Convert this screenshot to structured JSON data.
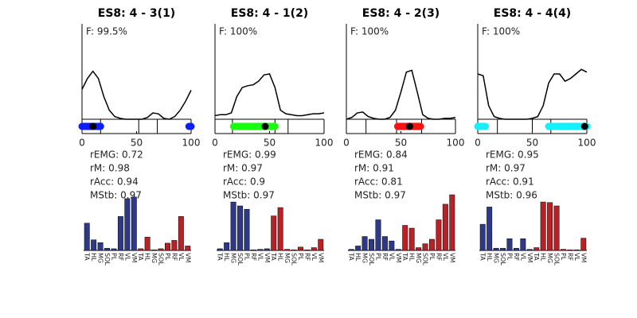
{
  "chart_data": [
    {
      "type": "line",
      "title": "ES8: 4 - 3(1)",
      "annotation": "F: 99.5%",
      "x": [
        0,
        5,
        10,
        15,
        20,
        25,
        30,
        35,
        40,
        45,
        50,
        55,
        60,
        65,
        70,
        75,
        80,
        85,
        90,
        95,
        100
      ],
      "values": [
        0.33,
        0.45,
        0.53,
        0.45,
        0.25,
        0.1,
        0.03,
        0.01,
        0,
        0,
        0,
        0,
        0.02,
        0.07,
        0.06,
        0.01,
        0,
        0.03,
        0.1,
        0.2,
        0.32
      ],
      "xlim": [
        0,
        100
      ],
      "xticks": [
        0,
        50,
        100
      ],
      "ylim": [
        0,
        1
      ],
      "color": "#000000",
      "phase_lines": [
        17,
        52,
        69
      ],
      "highlight_ranges": [
        [
          0,
          17
        ],
        [
          98,
          100
        ]
      ],
      "highlight_color": "#0a1eff",
      "marker": 10,
      "stats": [
        "rEMG: 0.72",
        "rM: 0.98",
        "rAcc: 0.94",
        "MStb: 0.97"
      ]
    },
    {
      "type": "bar",
      "categories": [
        "TA",
        "HL",
        "MG",
        "SOL",
        "PL",
        "RF",
        "VL",
        "VM",
        "TA",
        "HL",
        "MG",
        "SOL",
        "PL",
        "RF",
        "VL",
        "VM"
      ],
      "values": [
        0.49,
        0.19,
        0.14,
        0.04,
        0.03,
        0.61,
        0.93,
        0.96,
        0.03,
        0.24,
        0.01,
        0.03,
        0.13,
        0.18,
        0.61,
        0.08
      ],
      "colors": [
        "#2e3a87",
        "#2e3a87",
        "#2e3a87",
        "#2e3a87",
        "#2e3a87",
        "#2e3a87",
        "#2e3a87",
        "#2e3a87",
        "#b82125",
        "#b82125",
        "#b82125",
        "#b82125",
        "#b82125",
        "#b82125",
        "#b82125",
        "#b82125"
      ],
      "ylim": [
        0,
        1
      ]
    },
    {
      "type": "line",
      "title": "ES8: 4 - 1(2)",
      "annotation": "F: 100%",
      "x": [
        0,
        5,
        10,
        15,
        20,
        25,
        30,
        35,
        40,
        45,
        50,
        55,
        60,
        65,
        70,
        75,
        80,
        85,
        90,
        95,
        100
      ],
      "values": [
        0.04,
        0.05,
        0.05,
        0.07,
        0.25,
        0.35,
        0.37,
        0.38,
        0.42,
        0.49,
        0.5,
        0.35,
        0.1,
        0.06,
        0.05,
        0.04,
        0.04,
        0.05,
        0.06,
        0.06,
        0.07
      ],
      "xlim": [
        0,
        100
      ],
      "xticks": [
        0,
        50,
        100
      ],
      "ylim": [
        0,
        1
      ],
      "color": "#000000",
      "phase_lines": [
        16,
        55,
        67
      ],
      "highlight_ranges": [
        [
          17,
          55
        ]
      ],
      "highlight_color": "#19ff10",
      "marker": 46,
      "stats": [
        "rEMG: 0.99",
        "rM: 0.97",
        "rAcc: 0.9",
        "MStb: 0.97"
      ]
    },
    {
      "type": "bar",
      "categories": [
        "TA",
        "HL",
        "MG",
        "SOL",
        "PL",
        "RF",
        "VL",
        "VM",
        "TA",
        "HL",
        "MG",
        "SOL",
        "PL",
        "RF",
        "VL",
        "VM"
      ],
      "values": [
        0.03,
        0.14,
        0.87,
        0.8,
        0.74,
        0.01,
        0.02,
        0.03,
        0.62,
        0.77,
        0.02,
        0.01,
        0.06,
        0.01,
        0.05,
        0.2
      ],
      "colors": [
        "#2e3a87",
        "#2e3a87",
        "#2e3a87",
        "#2e3a87",
        "#2e3a87",
        "#2e3a87",
        "#2e3a87",
        "#2e3a87",
        "#b82125",
        "#b82125",
        "#b82125",
        "#b82125",
        "#b82125",
        "#b82125",
        "#b82125",
        "#b82125"
      ],
      "ylim": [
        0,
        1
      ]
    },
    {
      "type": "line",
      "title": "ES8: 4 - 2(3)",
      "annotation": "F: 100%",
      "x": [
        0,
        5,
        10,
        15,
        20,
        25,
        30,
        35,
        40,
        45,
        50,
        55,
        60,
        65,
        70,
        75,
        80,
        85,
        90,
        95,
        100
      ],
      "values": [
        0,
        0.02,
        0.07,
        0.08,
        0.03,
        0.01,
        0,
        0,
        0.02,
        0.1,
        0.3,
        0.52,
        0.54,
        0.3,
        0.05,
        0.01,
        0,
        0,
        0.01,
        0.01,
        0.02
      ],
      "xlim": [
        0,
        100
      ],
      "xticks": [
        0,
        50,
        100
      ],
      "ylim": [
        0,
        1
      ],
      "color": "#000000",
      "phase_lines": [
        18,
        46,
        69
      ],
      "highlight_ranges": [
        [
          47,
          68
        ]
      ],
      "highlight_color": "#ff1010",
      "marker": 58,
      "stats": [
        "rEMG: 0.84",
        "rM: 0.91",
        "rAcc: 0.81",
        "MStb: 0.97"
      ]
    },
    {
      "type": "bar",
      "categories": [
        "TA",
        "HL",
        "MG",
        "SOL",
        "PL",
        "RF",
        "VL",
        "VM",
        "TA",
        "HL",
        "MG",
        "SOL",
        "PL",
        "RF",
        "VL",
        "VM"
      ],
      "values": [
        0.02,
        0.08,
        0.25,
        0.2,
        0.55,
        0.25,
        0.17,
        0.02,
        0.45,
        0.4,
        0.05,
        0.12,
        0.2,
        0.55,
        0.83,
        1.0
      ],
      "colors": [
        "#2e3a87",
        "#2e3a87",
        "#2e3a87",
        "#2e3a87",
        "#2e3a87",
        "#2e3a87",
        "#2e3a87",
        "#2e3a87",
        "#b82125",
        "#b82125",
        "#b82125",
        "#b82125",
        "#b82125",
        "#b82125",
        "#b82125",
        "#b82125"
      ],
      "ylim": [
        0,
        1
      ]
    },
    {
      "type": "line",
      "title": "ES8: 4 - 4(4)",
      "annotation": "F: 100%",
      "x": [
        0,
        5,
        10,
        15,
        20,
        25,
        30,
        35,
        40,
        45,
        50,
        55,
        60,
        65,
        70,
        75,
        80,
        85,
        90,
        95,
        100
      ],
      "values": [
        0.5,
        0.48,
        0.15,
        0.03,
        0.01,
        0,
        0,
        0,
        0,
        0,
        0.01,
        0.03,
        0.15,
        0.4,
        0.5,
        0.5,
        0.42,
        0.45,
        0.5,
        0.55,
        0.52
      ],
      "xlim": [
        0,
        100
      ],
      "xticks": [
        0,
        50,
        100
      ],
      "ylim": [
        0,
        1
      ],
      "color": "#000000",
      "phase_lines": [
        18,
        50,
        67
      ],
      "highlight_ranges": [
        [
          0,
          7
        ],
        [
          65,
          100
        ]
      ],
      "highlight_color": "#14f0ff",
      "marker": 98,
      "stats": [
        "rEMG: 0.95",
        "rM: 0.97",
        "rAcc: 0.91",
        "MStb: 0.96"
      ]
    },
    {
      "type": "bar",
      "categories": [
        "TA",
        "HL",
        "MG",
        "SOL",
        "PL",
        "RF",
        "VL",
        "VM",
        "TA",
        "HL",
        "MG",
        "SOL",
        "PL",
        "RF",
        "VL",
        "VM"
      ],
      "values": [
        0.47,
        0.78,
        0.04,
        0.04,
        0.21,
        0.04,
        0.21,
        0.02,
        0.05,
        0.87,
        0.86,
        0.8,
        0.02,
        0.01,
        0.01,
        0.22
      ],
      "colors": [
        "#2e3a87",
        "#2e3a87",
        "#2e3a87",
        "#2e3a87",
        "#2e3a87",
        "#2e3a87",
        "#2e3a87",
        "#2e3a87",
        "#b82125",
        "#b82125",
        "#b82125",
        "#b82125",
        "#b82125",
        "#b82125",
        "#b82125",
        "#b82125"
      ],
      "ylim": [
        0,
        1
      ]
    }
  ]
}
